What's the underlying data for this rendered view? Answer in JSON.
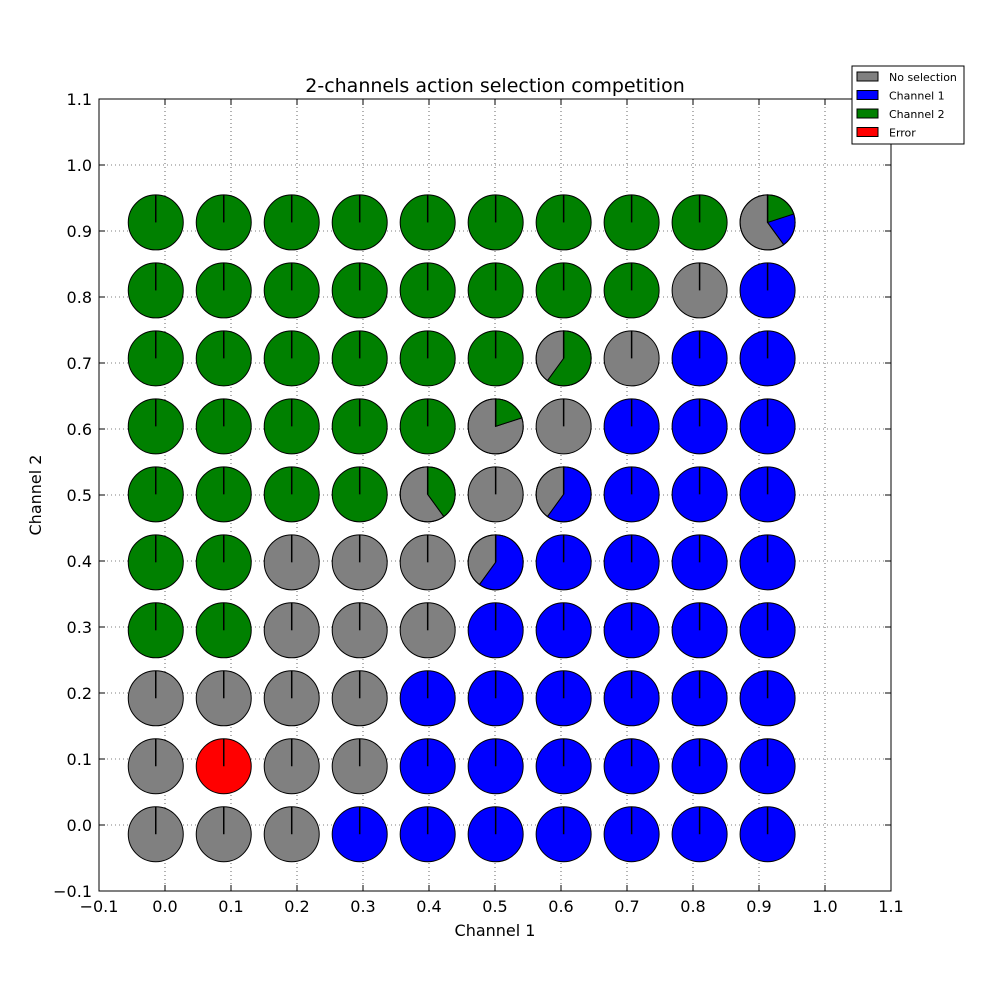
{
  "chart_data": {
    "type": "scatter",
    "marker": "pie",
    "title": "2-channels action selection competition",
    "xlabel": "Channel 1",
    "ylabel": "Channel 2",
    "xlim": [
      -0.1,
      1.1
    ],
    "ylim": [
      -0.1,
      1.1
    ],
    "xticks": [
      "−0.1",
      "0.0",
      "0.1",
      "0.2",
      "0.3",
      "0.4",
      "0.5",
      "0.6",
      "0.7",
      "0.8",
      "0.9",
      "1.0",
      "1.1"
    ],
    "yticks": [
      "−0.1",
      "0.0",
      "0.1",
      "0.2",
      "0.3",
      "0.4",
      "0.5",
      "0.6",
      "0.7",
      "0.8",
      "0.9",
      "1.0",
      "1.1"
    ],
    "grid": true,
    "legend_position": "outside-top-right",
    "legend": [
      {
        "label": "No selection",
        "color": "#808080"
      },
      {
        "label": "Channel 1",
        "color": "#0000ff"
      },
      {
        "label": "Channel 2",
        "color": "#008000"
      },
      {
        "label": "Error",
        "color": "#ff0000"
      }
    ],
    "x": [
      -0.014,
      0.089,
      0.192,
      0.295,
      0.398,
      0.501,
      0.604,
      0.707,
      0.81,
      0.913
    ],
    "y": [
      -0.014,
      0.089,
      0.192,
      0.295,
      0.398,
      0.501,
      0.604,
      0.707,
      0.81,
      0.913
    ],
    "fraction_order": [
      "No selection",
      "Channel 1",
      "Channel 2",
      "Error"
    ],
    "fractions_by_row": [
      [
        [
          1,
          0,
          0,
          0
        ],
        [
          1,
          0,
          0,
          0
        ],
        [
          1,
          0,
          0,
          0
        ],
        [
          0,
          1,
          0,
          0
        ],
        [
          0,
          1,
          0,
          0
        ],
        [
          0,
          1,
          0,
          0
        ],
        [
          0,
          1,
          0,
          0
        ],
        [
          0,
          1,
          0,
          0
        ],
        [
          0,
          1,
          0,
          0
        ],
        [
          0,
          1,
          0,
          0
        ]
      ],
      [
        [
          1,
          0,
          0,
          0
        ],
        [
          0,
          0,
          0,
          1
        ],
        [
          1,
          0,
          0,
          0
        ],
        [
          1,
          0,
          0,
          0
        ],
        [
          0,
          1,
          0,
          0
        ],
        [
          0,
          1,
          0,
          0
        ],
        [
          0,
          1,
          0,
          0
        ],
        [
          0,
          1,
          0,
          0
        ],
        [
          0,
          1,
          0,
          0
        ],
        [
          0,
          1,
          0,
          0
        ]
      ],
      [
        [
          1,
          0,
          0,
          0
        ],
        [
          1,
          0,
          0,
          0
        ],
        [
          1,
          0,
          0,
          0
        ],
        [
          1,
          0,
          0,
          0
        ],
        [
          0,
          1,
          0,
          0
        ],
        [
          0,
          1,
          0,
          0
        ],
        [
          0,
          1,
          0,
          0
        ],
        [
          0,
          1,
          0,
          0
        ],
        [
          0,
          1,
          0,
          0
        ],
        [
          0,
          1,
          0,
          0
        ]
      ],
      [
        [
          0,
          0,
          1,
          0
        ],
        [
          0,
          0,
          1,
          0
        ],
        [
          1,
          0,
          0,
          0
        ],
        [
          1,
          0,
          0,
          0
        ],
        [
          1,
          0,
          0,
          0
        ],
        [
          0,
          1,
          0,
          0
        ],
        [
          0,
          1,
          0,
          0
        ],
        [
          0,
          1,
          0,
          0
        ],
        [
          0,
          1,
          0,
          0
        ],
        [
          0,
          1,
          0,
          0
        ]
      ],
      [
        [
          0,
          0,
          1,
          0
        ],
        [
          0,
          0,
          1,
          0
        ],
        [
          1,
          0,
          0,
          0
        ],
        [
          1,
          0,
          0,
          0
        ],
        [
          1,
          0,
          0,
          0
        ],
        [
          0.4,
          0.6,
          0,
          0
        ],
        [
          0,
          1,
          0,
          0
        ],
        [
          0,
          1,
          0,
          0
        ],
        [
          0,
          1,
          0,
          0
        ],
        [
          0,
          1,
          0,
          0
        ]
      ],
      [
        [
          0,
          0,
          1,
          0
        ],
        [
          0,
          0,
          1,
          0
        ],
        [
          0,
          0,
          1,
          0
        ],
        [
          0,
          0,
          1,
          0
        ],
        [
          0.6,
          0,
          0.4,
          0
        ],
        [
          1,
          0,
          0,
          0
        ],
        [
          0.4,
          0.6,
          0,
          0
        ],
        [
          0,
          1,
          0,
          0
        ],
        [
          0,
          1,
          0,
          0
        ],
        [
          0,
          1,
          0,
          0
        ]
      ],
      [
        [
          0,
          0,
          1,
          0
        ],
        [
          0,
          0,
          1,
          0
        ],
        [
          0,
          0,
          1,
          0
        ],
        [
          0,
          0,
          1,
          0
        ],
        [
          0,
          0,
          1,
          0
        ],
        [
          0.8,
          0,
          0.2,
          0
        ],
        [
          1,
          0,
          0,
          0
        ],
        [
          0,
          1,
          0,
          0
        ],
        [
          0,
          1,
          0,
          0
        ],
        [
          0,
          1,
          0,
          0
        ]
      ],
      [
        [
          0,
          0,
          1,
          0
        ],
        [
          0,
          0,
          1,
          0
        ],
        [
          0,
          0,
          1,
          0
        ],
        [
          0,
          0,
          1,
          0
        ],
        [
          0,
          0,
          1,
          0
        ],
        [
          0,
          0,
          1,
          0
        ],
        [
          0.4,
          0,
          0.6,
          0
        ],
        [
          1,
          0,
          0,
          0
        ],
        [
          0,
          1,
          0,
          0
        ],
        [
          0,
          1,
          0,
          0
        ]
      ],
      [
        [
          0,
          0,
          1,
          0
        ],
        [
          0,
          0,
          1,
          0
        ],
        [
          0,
          0,
          1,
          0
        ],
        [
          0,
          0,
          1,
          0
        ],
        [
          0,
          0,
          1,
          0
        ],
        [
          0,
          0,
          1,
          0
        ],
        [
          0,
          0,
          1,
          0
        ],
        [
          0,
          0,
          1,
          0
        ],
        [
          1,
          0,
          0,
          0
        ],
        [
          0,
          1,
          0,
          0
        ]
      ],
      [
        [
          0,
          0,
          1,
          0
        ],
        [
          0,
          0,
          1,
          0
        ],
        [
          0,
          0,
          1,
          0
        ],
        [
          0,
          0,
          1,
          0
        ],
        [
          0,
          0,
          1,
          0
        ],
        [
          0,
          0,
          1,
          0
        ],
        [
          0,
          0,
          1,
          0
        ],
        [
          0,
          0,
          1,
          0
        ],
        [
          0,
          0,
          1,
          0
        ],
        [
          0.6,
          0.2,
          0.2,
          0
        ]
      ]
    ]
  }
}
